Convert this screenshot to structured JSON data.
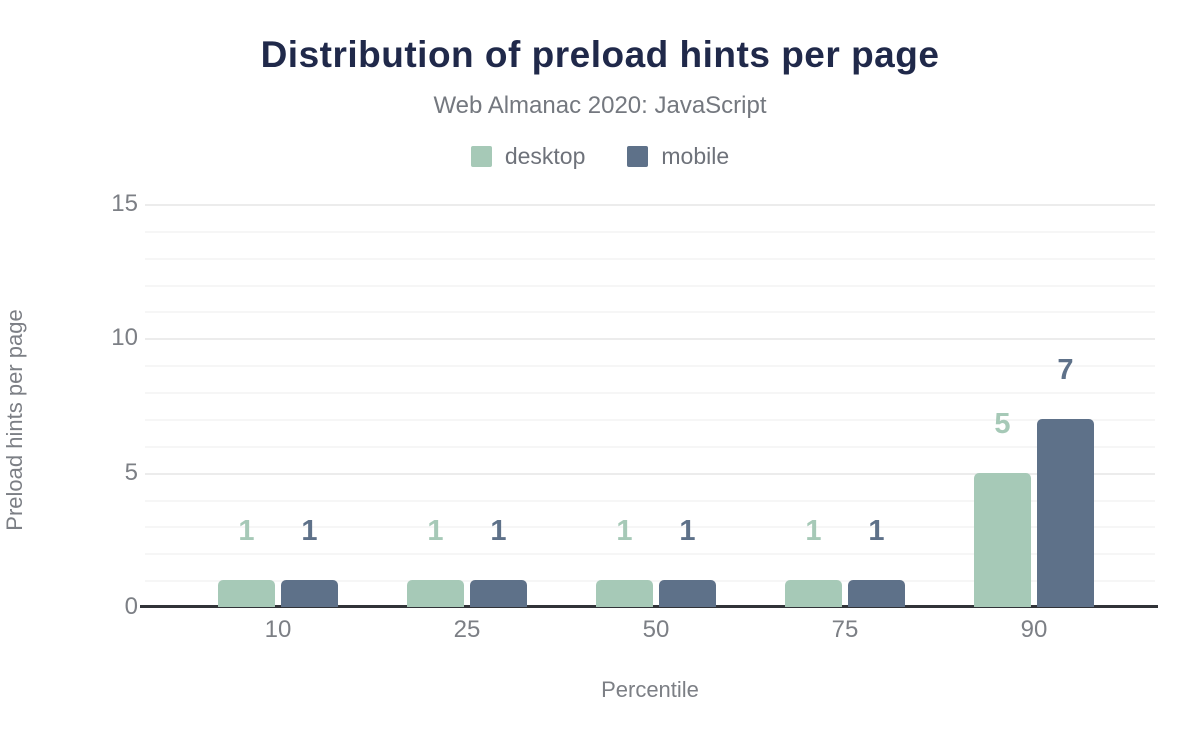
{
  "header": {
    "title": "Distribution of preload hints per page",
    "subtitle": "Web Almanac 2020: JavaScript"
  },
  "legend": {
    "items": [
      {
        "label": "desktop",
        "color": "#a6c9b7"
      },
      {
        "label": "mobile",
        "color": "#5e7189"
      }
    ]
  },
  "axes": {
    "x_title": "Percentile",
    "y_title": "Preload hints per page"
  },
  "chart_data": {
    "type": "bar",
    "title": "Distribution of preload hints per page",
    "subtitle": "Web Almanac 2020: JavaScript",
    "categories": [
      "10",
      "25",
      "50",
      "75",
      "90"
    ],
    "series": [
      {
        "name": "desktop",
        "color": "#a6c9b7",
        "values": [
          1,
          1,
          1,
          1,
          5
        ]
      },
      {
        "name": "mobile",
        "color": "#5e7189",
        "values": [
          1,
          1,
          1,
          1,
          7
        ]
      }
    ],
    "xlabel": "Percentile",
    "ylabel": "Preload hints per page",
    "ylim": [
      0,
      15
    ],
    "yticks": [
      0,
      5,
      10,
      15
    ],
    "minor_grid_step": 1,
    "grid": "horizontal",
    "legend_position": "top",
    "value_labels": true
  },
  "colors": {
    "title": "#20294a",
    "subtitle_text": "#74787f",
    "tick_text": "#7c7f85",
    "axis_line": "#313338",
    "grid_major": "#ececec",
    "grid_minor": "#f6f6f6",
    "background": "#ffffff"
  }
}
